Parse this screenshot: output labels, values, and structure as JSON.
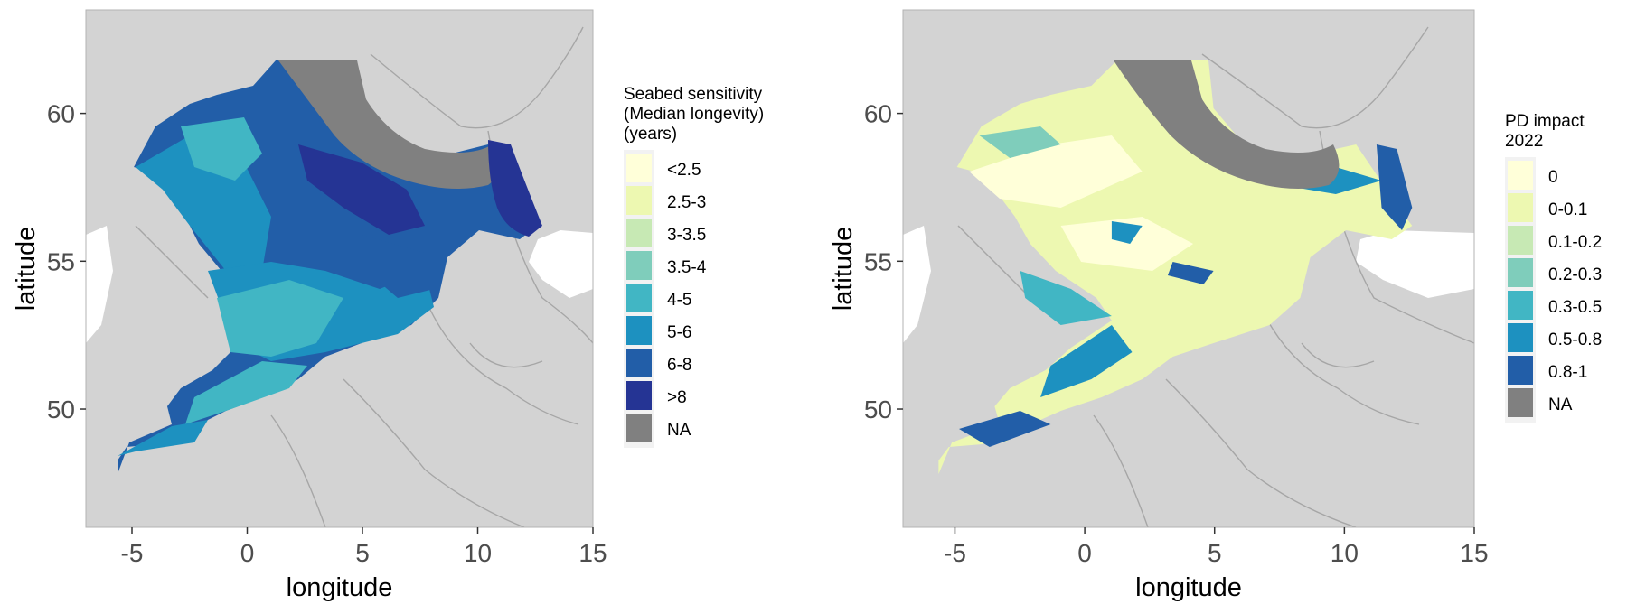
{
  "maps": [
    {
      "id": "sensitivity",
      "xlabel": "longitude",
      "ylabel": "latitude",
      "xlim": [
        -7,
        15
      ],
      "ylim": [
        46,
        63.5
      ],
      "x_ticks": [
        "-5",
        "0",
        "5",
        "10",
        "15"
      ],
      "x_tick_values": [
        -5,
        0,
        5,
        10,
        15
      ],
      "y_ticks": [
        "50",
        "55",
        "60"
      ],
      "y_tick_values": [
        50,
        55,
        60
      ],
      "legend": {
        "title_lines": [
          "Seabed sensitivity",
          "(Median longevity)",
          "(years)"
        ],
        "items": [
          {
            "label": "<2.5",
            "color": "#ffffd9"
          },
          {
            "label": "2.5-3",
            "color": "#edf8b1"
          },
          {
            "label": "3-3.5",
            "color": "#c7e9b4"
          },
          {
            "label": "3.5-4",
            "color": "#7fcdbb"
          },
          {
            "label": "4-5",
            "color": "#41b6c4"
          },
          {
            "label": "5-6",
            "color": "#1d91c0"
          },
          {
            "label": "6-8",
            "color": "#225ea8"
          },
          {
            "label": ">8",
            "color": "#253494"
          },
          {
            "label": "NA",
            "color": "#808080"
          }
        ]
      }
    },
    {
      "id": "impact",
      "xlabel": "longitude",
      "ylabel": "latitude",
      "xlim": [
        -7,
        15
      ],
      "ylim": [
        46,
        63.5
      ],
      "x_ticks": [
        "-5",
        "0",
        "5",
        "10",
        "15"
      ],
      "x_tick_values": [
        -5,
        0,
        5,
        10,
        15
      ],
      "y_ticks": [
        "50",
        "55",
        "60"
      ],
      "y_tick_values": [
        50,
        55,
        60
      ],
      "legend": {
        "title_lines": [
          "PD impact",
          "2022"
        ],
        "items": [
          {
            "label": "0",
            "color": "#ffffd9"
          },
          {
            "label": "0-0.1",
            "color": "#edf8b1"
          },
          {
            "label": "0.1-0.2",
            "color": "#c7e9b4"
          },
          {
            "label": "0.2-0.3",
            "color": "#7fcdbb"
          },
          {
            "label": "0.3-0.5",
            "color": "#41b6c4"
          },
          {
            "label": "0.5-0.8",
            "color": "#1d91c0"
          },
          {
            "label": "0.8-1",
            "color": "#225ea8"
          },
          {
            "label": "NA",
            "color": "#808080"
          }
        ]
      }
    }
  ],
  "colors": {
    "land": "#d3d3d3",
    "land_border": "#a6a6a6",
    "panel_border": "#b3b3b3",
    "na": "#808080",
    "legend_bg": "#f2f2f2"
  }
}
